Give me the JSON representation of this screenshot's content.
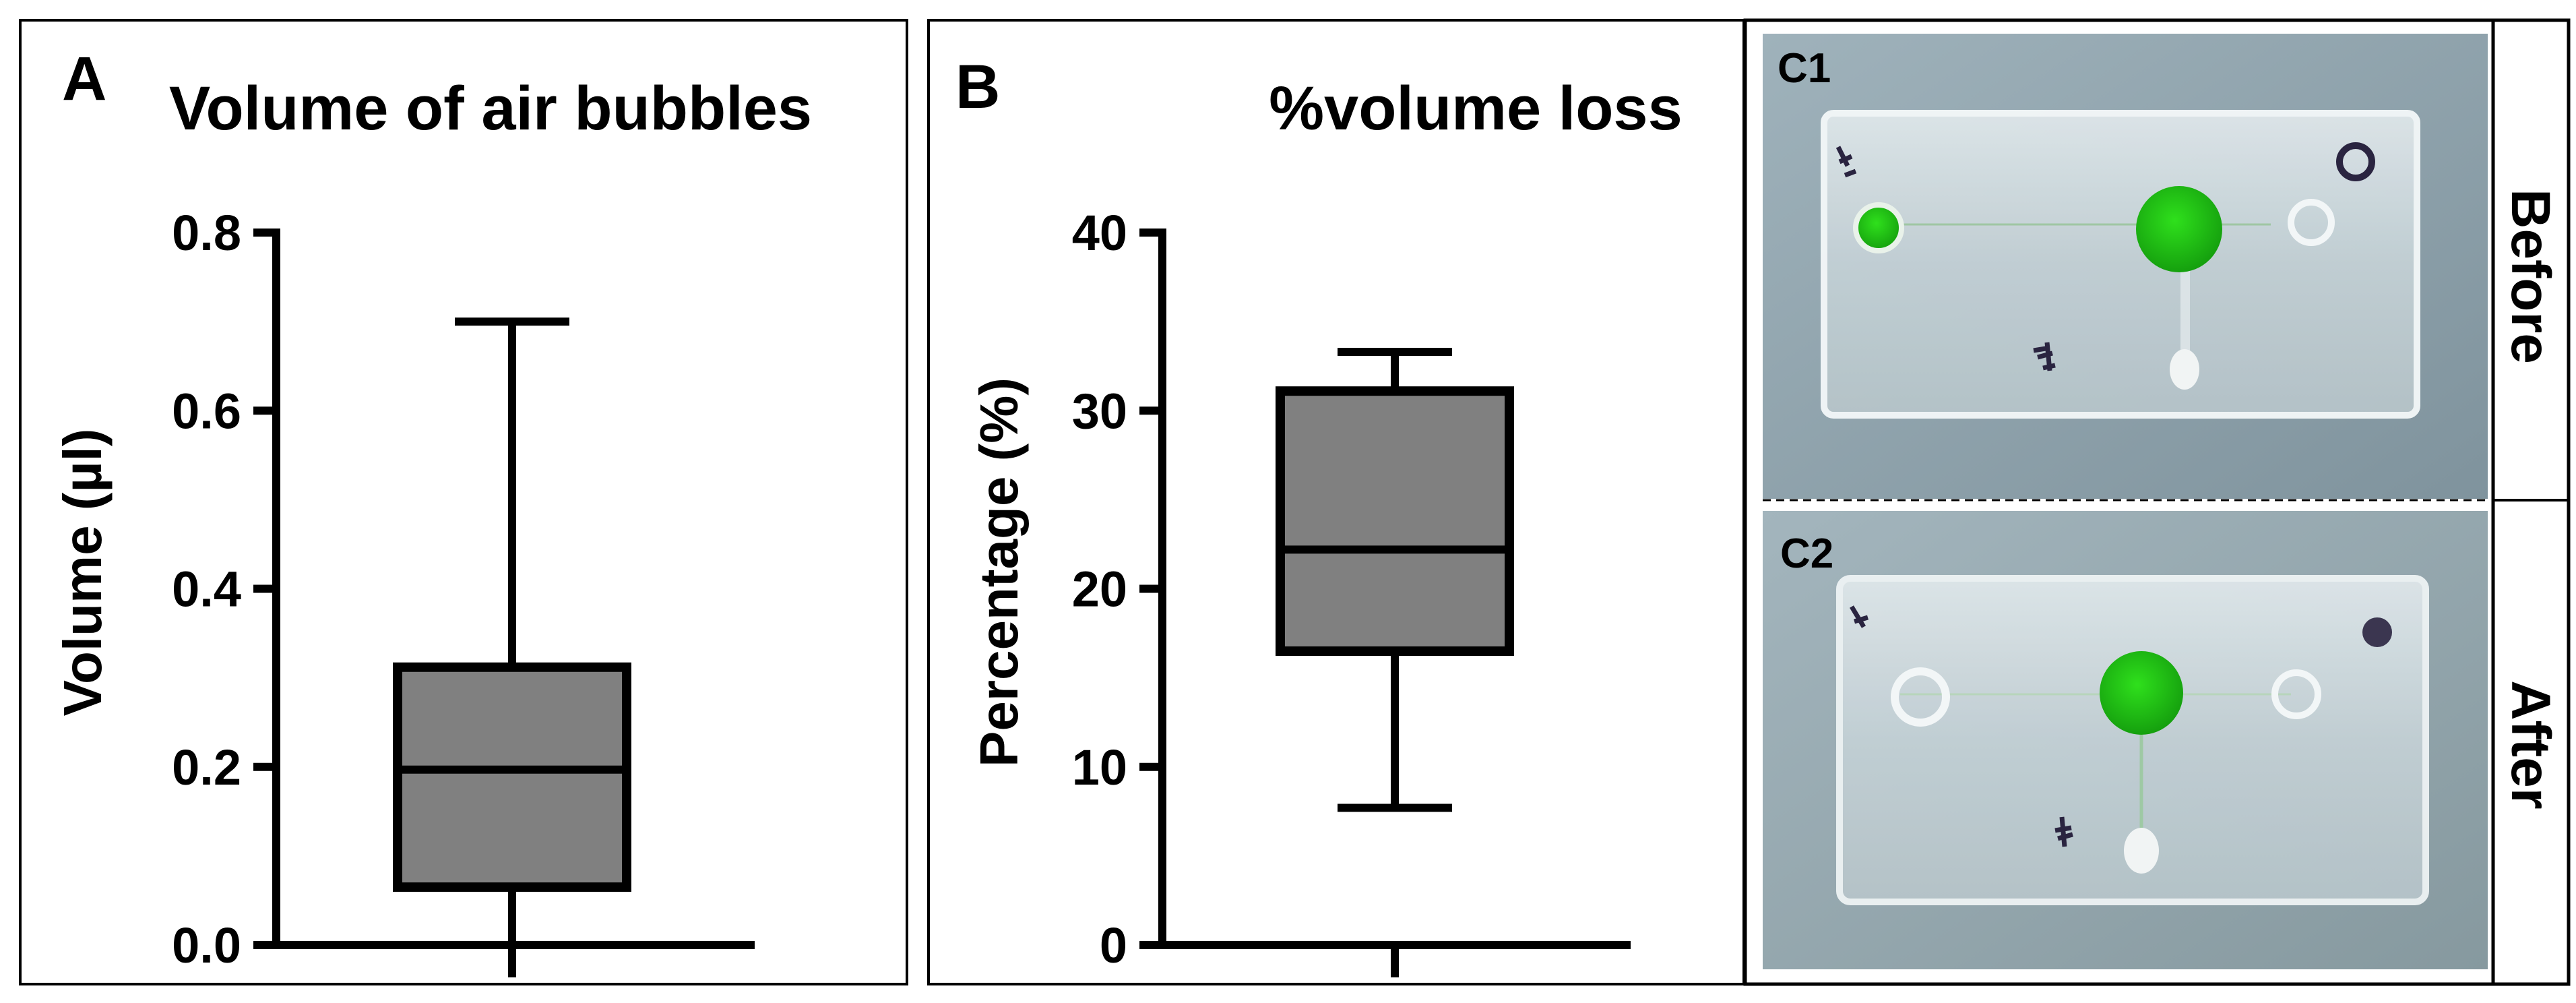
{
  "panels": {
    "a": {
      "letter": "A"
    },
    "b": {
      "letter": "B"
    },
    "c": {
      "photo_top_label": "C1",
      "photo_bottom_label": "C2",
      "side_label_top": "Before",
      "side_label_bottom": "After"
    }
  },
  "colors": {
    "box_fill": "#808080",
    "ink": "#000000",
    "photo_background": "#8fa3ad",
    "chip_body": "#cfd9dd",
    "dye_green": "#24c416",
    "marker_ink": "#2a2440"
  },
  "chart_data": [
    {
      "type": "box",
      "title": "Volume of air bubbles",
      "xlabel": "",
      "ylabel": "Volume (µl)",
      "ylim": [
        0,
        0.8
      ],
      "yticks": [
        0.0,
        0.2,
        0.4,
        0.6,
        0.8
      ],
      "ytick_labels": [
        "0.0",
        "0.2",
        "0.4",
        "0.6",
        "0.8"
      ],
      "box": {
        "min": 0.0,
        "q1": 0.065,
        "median": 0.197,
        "q3": 0.312,
        "max": 0.7
      }
    },
    {
      "type": "box",
      "title": "%volume loss",
      "xlabel": "",
      "ylabel": "Percentage (%)",
      "ylim": [
        0,
        40
      ],
      "yticks": [
        0,
        10,
        20,
        30,
        40
      ],
      "ytick_labels": [
        "0",
        "10",
        "20",
        "30",
        "40"
      ],
      "box": {
        "min": 7.7,
        "q1": 16.5,
        "median": 22.2,
        "q3": 31.1,
        "max": 33.3
      }
    }
  ]
}
